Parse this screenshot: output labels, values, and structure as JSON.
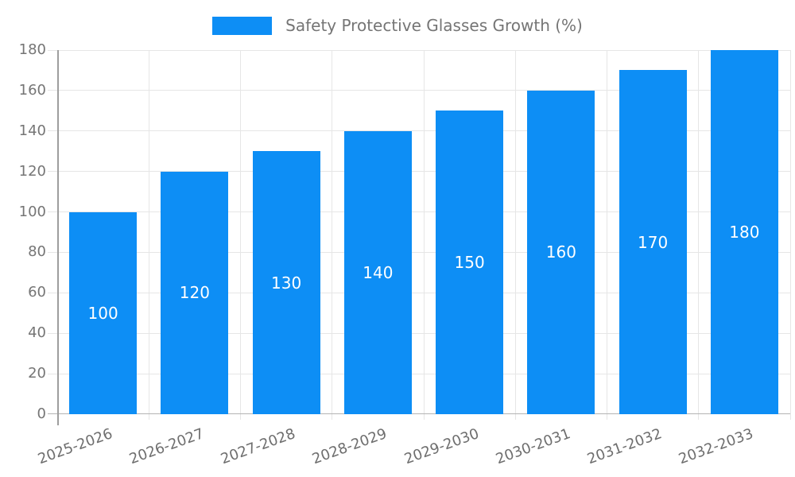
{
  "chart_data": {
    "type": "bar",
    "title": "",
    "xlabel": "",
    "ylabel": "",
    "legend": {
      "label": "Safety Protective Glasses Growth (%)",
      "position": "top"
    },
    "categories": [
      "2025-2026",
      "2026-2027",
      "2027-2028",
      "2028-2029",
      "2029-2030",
      "2030-2031",
      "2031-2032",
      "2032-2033"
    ],
    "values": [
      100,
      120,
      130,
      140,
      150,
      160,
      170,
      180
    ],
    "bar_labels": [
      "100",
      "120",
      "130",
      "140",
      "150",
      "160",
      "170",
      "180"
    ],
    "ylim": [
      0,
      180
    ],
    "yticks": [
      0,
      20,
      40,
      60,
      80,
      100,
      120,
      140,
      160,
      180
    ],
    "grid": true,
    "xtick_rotation_deg": -20
  },
  "colors": {
    "bar": "#0d8ef5",
    "bar_label_text": "#ffffff",
    "tick_text": "#757575",
    "gridline": "#e6e6e6",
    "axis_line": "#9e9e9e",
    "baseline": "#b3b3b3",
    "background": "#ffffff"
  }
}
